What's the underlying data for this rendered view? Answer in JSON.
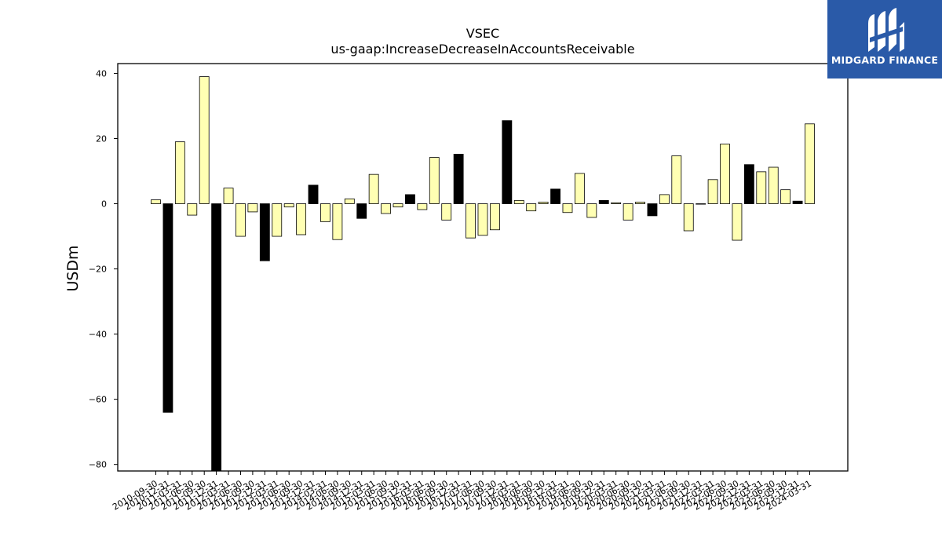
{
  "brand": {
    "name": "MIDGARD FINANCE",
    "color": "#2a5aa8"
  },
  "chart_data": {
    "type": "bar",
    "title": "VSEC",
    "subtitle": "us-gaap:IncreaseDecreaseInAccountsReceivable",
    "ylabel": "USDm",
    "xlabel": "",
    "ylim": [
      -82,
      43
    ],
    "yticks": [
      40,
      20,
      0,
      -20,
      -40,
      -60,
      -80
    ],
    "grid": false,
    "colors": {
      "fill": "#ffffb3",
      "highlight": "#000000"
    },
    "categories": [
      "2010-09-30",
      "2010-12-31",
      "2011-03-31",
      "2011-06-30",
      "2011-09-30",
      "2011-12-31",
      "2012-03-31",
      "2012-06-30",
      "2012-09-30",
      "2012-12-31",
      "2013-03-31",
      "2013-06-30",
      "2013-09-30",
      "2013-12-31",
      "2014-03-31",
      "2014-06-30",
      "2014-09-30",
      "2014-12-31",
      "2015-03-31",
      "2015-06-30",
      "2015-09-30",
      "2015-12-31",
      "2016-03-31",
      "2016-06-30",
      "2016-09-30",
      "2016-12-31",
      "2017-03-31",
      "2017-06-30",
      "2017-09-30",
      "2017-12-31",
      "2018-03-31",
      "2018-06-30",
      "2018-09-30",
      "2018-12-31",
      "2019-03-31",
      "2019-06-30",
      "2019-09-30",
      "2019-12-31",
      "2020-03-31",
      "2020-06-30",
      "2020-09-30",
      "2020-12-31",
      "2021-03-31",
      "2021-06-30",
      "2021-09-30",
      "2021-12-31",
      "2022-03-31",
      "2022-06-30",
      "2022-09-30",
      "2022-12-31",
      "2023-03-31",
      "2023-06-30",
      "2023-09-30",
      "2023-12-31",
      "2024-03-31"
    ],
    "values": [
      1.2,
      -64,
      19,
      -3.5,
      39,
      -82,
      4.8,
      -10,
      -2.5,
      -17.5,
      -10,
      -1,
      -9.5,
      5.7,
      -5.5,
      -11,
      1.5,
      -4.5,
      9,
      -3,
      -1,
      2.8,
      -1.8,
      14.2,
      -5,
      15.2,
      -10.5,
      -9.7,
      -8,
      25.5,
      1,
      -2.2,
      0.5,
      4.5,
      -2.7,
      9.3,
      -4.2,
      1,
      0.3,
      -5,
      0.5,
      -3.7,
      2.8,
      14.7,
      -8.3,
      0,
      7.4,
      18.3,
      -11.2,
      12,
      9.8,
      11.2,
      4.3,
      0.8,
      24.5
    ],
    "highlight": [
      false,
      true,
      false,
      false,
      false,
      true,
      false,
      false,
      false,
      true,
      false,
      false,
      false,
      true,
      false,
      false,
      false,
      true,
      false,
      false,
      false,
      true,
      false,
      false,
      false,
      true,
      false,
      false,
      false,
      true,
      false,
      false,
      false,
      true,
      false,
      false,
      false,
      true,
      false,
      false,
      false,
      true,
      false,
      false,
      false,
      true,
      false,
      false,
      false,
      true,
      false,
      false,
      false,
      true,
      false
    ]
  }
}
